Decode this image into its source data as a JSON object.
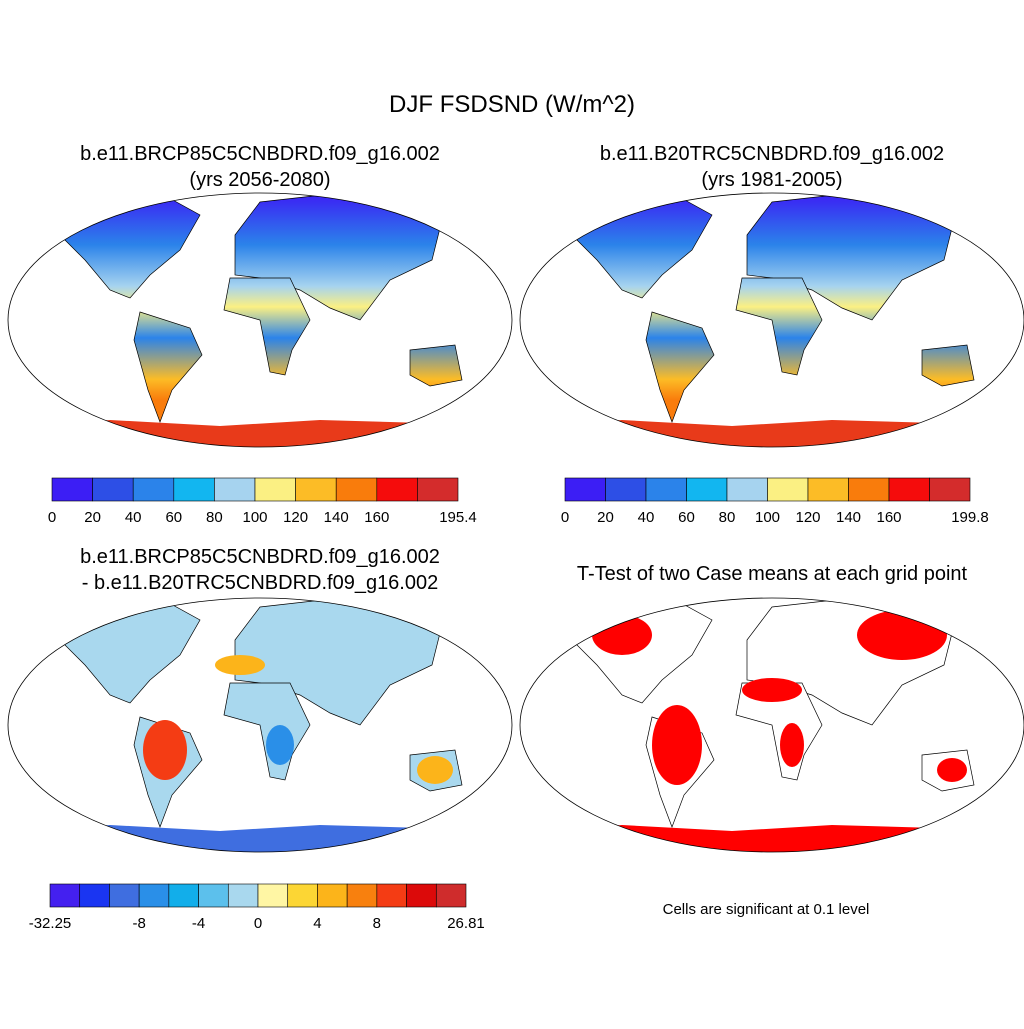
{
  "title": "DJF FSDSND (W/m^2)",
  "panels": [
    {
      "title_lines": [
        "b.e11.BRCP85C5CNBDRD.f09_g16.002",
        "(yrs 2056-2080)"
      ],
      "colorbar": {
        "colors": [
          "#3c1ef5",
          "#2d4fe6",
          "#2b83ea",
          "#12b6f0",
          "#a6d3ef",
          "#fbf083",
          "#fcbc26",
          "#f97c0c",
          "#f50c0c",
          "#d42c2c"
        ],
        "labels": [
          "0",
          "20",
          "40",
          "60",
          "80",
          "100",
          "120",
          "140",
          "160",
          null,
          "195.4"
        ]
      }
    },
    {
      "title_lines": [
        "b.e11.B20TRC5CNBDRD.f09_g16.002",
        "(yrs 1981-2005)"
      ],
      "colorbar": {
        "colors": [
          "#3c1ef5",
          "#2d4fe6",
          "#2b83ea",
          "#12b6f0",
          "#a6d3ef",
          "#fbf083",
          "#fcbc26",
          "#f97c0c",
          "#f50c0c",
          "#d42c2c"
        ],
        "labels": [
          "0",
          "20",
          "40",
          "60",
          "80",
          "100",
          "120",
          "140",
          "160",
          null,
          "199.8"
        ]
      }
    },
    {
      "title_lines": [
        "b.e11.BRCP85C5CNBDRD.f09_g16.002",
        "- b.e11.B20TRC5CNBDRD.f09_g16.002"
      ],
      "colorbar": {
        "colors": [
          "#4420f0",
          "#1a35f2",
          "#3f6ee0",
          "#2a8fe8",
          "#12aeea",
          "#5cc0ec",
          "#a9d8ee",
          "#fff6a4",
          "#fcd634",
          "#fcb41a",
          "#f8800e",
          "#f43c14",
          "#dc0a0a",
          "#cf2c2c"
        ],
        "labels": [
          "-32.25",
          null,
          null,
          "-8",
          null,
          "-4",
          null,
          "0",
          null,
          "4",
          null,
          "8",
          null,
          null,
          "26.81"
        ]
      }
    },
    {
      "title_lines": [
        "T-Test of two Case means at each grid point"
      ],
      "note": "Cells are significant at 0.1 level"
    }
  ]
}
